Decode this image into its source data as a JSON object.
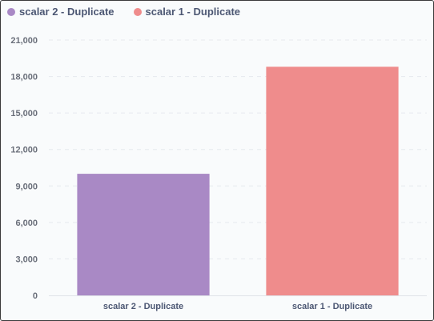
{
  "chart_data": {
    "type": "bar",
    "categories": [
      "scalar 2 - Duplicate",
      "scalar 1 - Duplicate"
    ],
    "series": [
      {
        "name": "scalar 2 - Duplicate",
        "values": [
          10000,
          null
        ],
        "color": "#A989C5"
      },
      {
        "name": "scalar 1 - Duplicate",
        "values": [
          null,
          18800
        ],
        "color": "#EF8C8C"
      }
    ],
    "y_ticks": [
      0,
      3000,
      6000,
      9000,
      12000,
      15000,
      18000,
      21000
    ],
    "y_tick_labels": [
      "0",
      "3,000",
      "6,000",
      "9,000",
      "12,000",
      "15,000",
      "18,000",
      "21,000"
    ],
    "ylim": [
      0,
      21000
    ],
    "grid": true,
    "legend_placement": "top-left",
    "title": "",
    "xlabel": "",
    "ylabel": ""
  },
  "legend": [
    {
      "label": "scalar 2 - Duplicate",
      "color": "#A989C5"
    },
    {
      "label": "scalar 1 - Duplicate",
      "color": "#EF8C8C"
    }
  ],
  "colors": {
    "axis_text": "#6a6f7a",
    "grid": "#e6e9ee",
    "axis_line": "#e0e3e8"
  }
}
